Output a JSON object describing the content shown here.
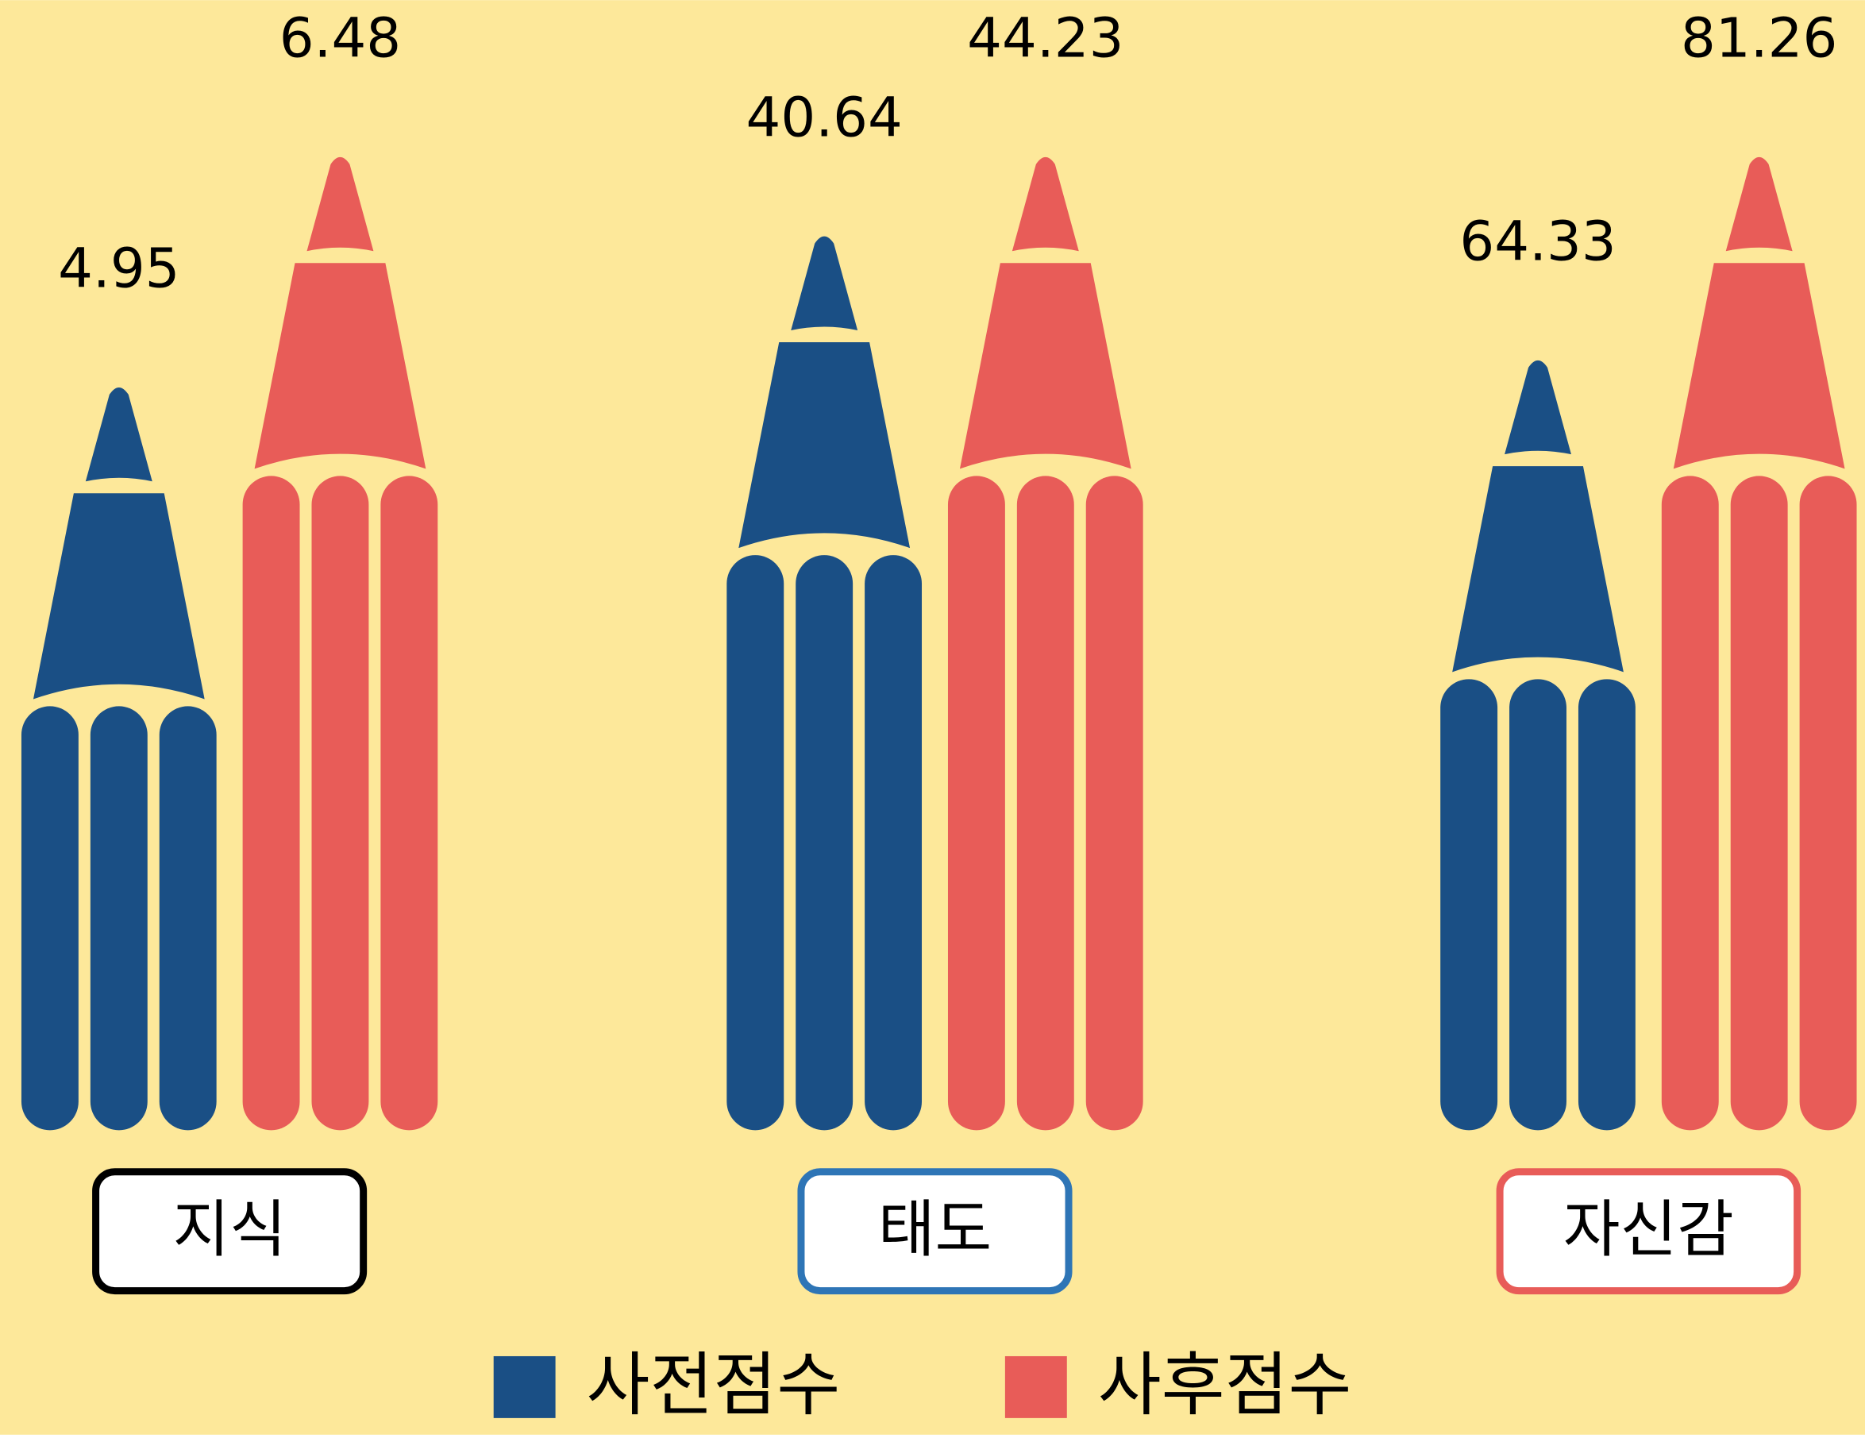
{
  "chart_data": {
    "type": "pencil-bar",
    "background": "#fde89a",
    "categories": [
      "지식",
      "태도",
      "자신감"
    ],
    "category_border_colors": [
      "#000000",
      "#2e75b6",
      "#e85c58"
    ],
    "series": [
      {
        "name": "사전점수",
        "color": "#1a4f85",
        "values": [
          4.95,
          40.64,
          64.33
        ]
      },
      {
        "name": "사후점수",
        "color": "#e85c58",
        "values": [
          6.48,
          44.23,
          81.26
        ]
      }
    ],
    "legend": "bottom"
  }
}
